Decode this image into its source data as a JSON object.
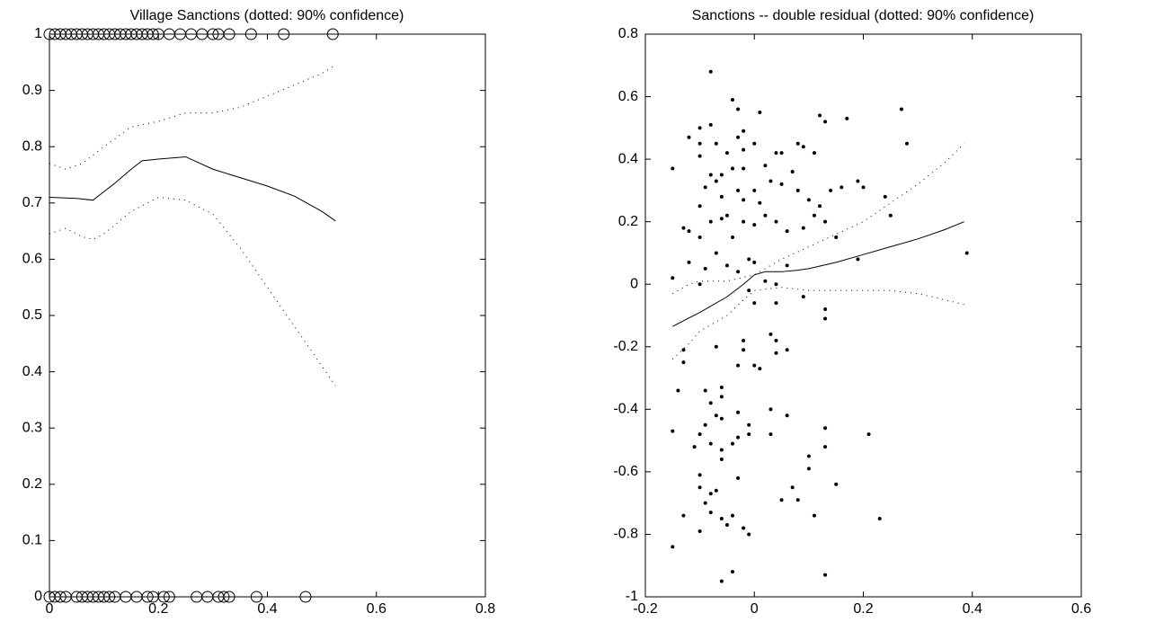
{
  "chart_data": [
    {
      "type": "line",
      "title": "Village Sanctions (dotted: 90% confidence)",
      "xlim": [
        0,
        0.8
      ],
      "xticks": [
        0,
        0.2,
        0.4,
        0.6,
        0.8
      ],
      "ylim": [
        0,
        1
      ],
      "yticks": [
        0,
        0.1,
        0.2,
        0.3,
        0.4,
        0.5,
        0.6,
        0.7,
        0.8,
        0.9,
        1
      ],
      "grid": false,
      "series": [
        {
          "style": "solid",
          "color": "#000000",
          "x": [
            0,
            0.05,
            0.08,
            0.1,
            0.12,
            0.15,
            0.17,
            0.2,
            0.25,
            0.3,
            0.35,
            0.4,
            0.45,
            0.5,
            0.525
          ],
          "values": [
            0.71,
            0.708,
            0.705,
            0.72,
            0.735,
            0.76,
            0.775,
            0.778,
            0.782,
            0.76,
            0.745,
            0.73,
            0.712,
            0.685,
            0.668
          ]
        },
        {
          "style": "dotted",
          "color": "#000000",
          "x": [
            0,
            0.03,
            0.06,
            0.1,
            0.15,
            0.2,
            0.25,
            0.3,
            0.35,
            0.4,
            0.45,
            0.5,
            0.525
          ],
          "values": [
            0.77,
            0.76,
            0.77,
            0.8,
            0.835,
            0.845,
            0.86,
            0.86,
            0.87,
            0.89,
            0.91,
            0.93,
            0.945
          ]
        },
        {
          "style": "dotted",
          "color": "#000000",
          "x": [
            0,
            0.03,
            0.06,
            0.08,
            0.1,
            0.15,
            0.2,
            0.25,
            0.3,
            0.35,
            0.4,
            0.45,
            0.5,
            0.525
          ],
          "values": [
            0.645,
            0.655,
            0.64,
            0.635,
            0.645,
            0.685,
            0.71,
            0.705,
            0.68,
            0.62,
            0.55,
            0.48,
            0.41,
            0.375
          ]
        },
        {
          "style": "circle",
          "color": "#000000",
          "x": [
            0,
            0.01,
            0.02,
            0.03,
            0.04,
            0.05,
            0.06,
            0.07,
            0.08,
            0.09,
            0.1,
            0.11,
            0.12,
            0.13,
            0.14,
            0.15,
            0.16,
            0.17,
            0.18,
            0.19,
            0.2,
            0.22,
            0.24,
            0.26,
            0.28,
            0.3,
            0.31,
            0.33,
            0.37,
            0.43,
            0.52
          ],
          "values": [
            1,
            1,
            1,
            1,
            1,
            1,
            1,
            1,
            1,
            1,
            1,
            1,
            1,
            1,
            1,
            1,
            1,
            1,
            1,
            1,
            1,
            1,
            1,
            1,
            1,
            1,
            1,
            1,
            1,
            1,
            1
          ]
        },
        {
          "style": "circle",
          "color": "#000000",
          "x": [
            0,
            0.01,
            0.02,
            0.03,
            0.05,
            0.06,
            0.07,
            0.08,
            0.09,
            0.1,
            0.11,
            0.12,
            0.14,
            0.16,
            0.18,
            0.19,
            0.21,
            0.22,
            0.27,
            0.29,
            0.31,
            0.32,
            0.33,
            0.38,
            0.47
          ],
          "values": [
            0,
            0,
            0,
            0,
            0,
            0,
            0,
            0,
            0,
            0,
            0,
            0,
            0,
            0,
            0,
            0,
            0,
            0,
            0,
            0,
            0,
            0,
            0,
            0,
            0
          ]
        }
      ]
    },
    {
      "type": "line",
      "title": "Sanctions -- double residual (dotted: 90% confidence)",
      "xlim": [
        -0.2,
        0.6
      ],
      "xticks": [
        -0.2,
        0,
        0.2,
        0.4,
        0.6
      ],
      "ylim": [
        -1,
        0.8
      ],
      "yticks": [
        -1,
        -0.8,
        -0.6,
        -0.4,
        -0.2,
        0,
        0.2,
        0.4,
        0.6,
        0.8
      ],
      "grid": false,
      "series": [
        {
          "style": "solid",
          "color": "#000000",
          "x": [
            -0.15,
            -0.1,
            -0.05,
            -0.02,
            0,
            0.02,
            0.05,
            0.08,
            0.1,
            0.15,
            0.2,
            0.25,
            0.3,
            0.35,
            0.385
          ],
          "values": [
            -0.135,
            -0.09,
            -0.04,
            0.0,
            0.03,
            0.04,
            0.04,
            0.045,
            0.05,
            0.07,
            0.095,
            0.12,
            0.145,
            0.175,
            0.2
          ]
        },
        {
          "style": "dotted",
          "color": "#000000",
          "x": [
            -0.15,
            -0.12,
            -0.1,
            -0.05,
            0,
            0.05,
            0.1,
            0.15,
            0.2,
            0.25,
            0.3,
            0.35,
            0.385
          ],
          "values": [
            -0.03,
            0.0,
            0.01,
            0.01,
            0.03,
            0.08,
            0.12,
            0.16,
            0.2,
            0.26,
            0.32,
            0.39,
            0.45
          ]
        },
        {
          "style": "dotted",
          "color": "#000000",
          "x": [
            -0.15,
            -0.12,
            -0.1,
            -0.05,
            -0.02,
            0,
            0.05,
            0.1,
            0.15,
            0.2,
            0.25,
            0.3,
            0.35,
            0.385
          ],
          "values": [
            -0.24,
            -0.19,
            -0.15,
            -0.1,
            -0.05,
            -0.02,
            -0.01,
            -0.02,
            -0.02,
            -0.02,
            -0.02,
            -0.03,
            -0.05,
            -0.065
          ]
        },
        {
          "style": "dot",
          "color": "#000000",
          "x": [
            -0.08,
            -0.04,
            -0.03,
            0.01,
            -0.1,
            -0.08,
            -0.12,
            -0.1,
            -0.07,
            -0.05,
            -0.02,
            -0.03,
            -0.02,
            0,
            -0.15,
            -0.1,
            -0.08,
            -0.06,
            -0.04,
            -0.02,
            0.02,
            0.04,
            0.05,
            0.08,
            0.09,
            0.11,
            0.12,
            0.13,
            0.17,
            0.27,
            0.28,
            -0.13,
            -0.12,
            -0.1,
            -0.09,
            -0.07,
            -0.06,
            -0.05,
            -0.03,
            -0.02,
            0,
            0.01,
            0.03,
            0.05,
            0.07,
            0.08,
            0.1,
            0.12,
            0.14,
            0.16,
            0.19,
            0.2,
            0.24,
            0.25,
            -0.1,
            -0.08,
            -0.06,
            -0.04,
            -0.02,
            0,
            0.02,
            0.04,
            0.06,
            0.09,
            0.11,
            0.13,
            0.15,
            -0.12,
            -0.1,
            -0.09,
            -0.07,
            -0.05,
            -0.03,
            -0.01,
            0,
            0.02,
            0.04,
            0.06,
            0.09,
            0.13,
            0.13,
            0.19,
            0.39,
            -0.15,
            -0.01,
            0,
            0.04,
            -0.14,
            -0.13,
            -0.13,
            -0.07,
            -0.02,
            -0.02,
            -0.03,
            0,
            0.01,
            0.03,
            0.04,
            0.06,
            0.04,
            -0.09,
            -0.06,
            -0.06,
            -0.08,
            -0.07,
            -0.09,
            -0.06,
            -0.03,
            0.03,
            0.06,
            -0.01,
            -0.01,
            -0.15,
            -0.1,
            -0.08,
            -0.06,
            -0.06,
            -0.03,
            -0.04,
            0.03,
            0.13,
            0.13,
            0.1,
            0.1,
            0.15,
            0.21,
            -0.11,
            -0.1,
            -0.1,
            -0.08,
            -0.07,
            -0.03,
            -0.09,
            -0.08,
            -0.06,
            -0.04,
            0.05,
            0.07,
            0.08,
            -0.13,
            -0.1,
            -0.05,
            -0.02,
            -0.01,
            -0.15,
            0.11,
            0.23,
            -0.04,
            -0.06,
            0.13
          ],
          "values": [
            0.68,
            0.59,
            0.56,
            0.55,
            0.5,
            0.51,
            0.47,
            0.45,
            0.45,
            0.42,
            0.49,
            0.47,
            0.43,
            0.45,
            0.37,
            0.41,
            0.35,
            0.35,
            0.37,
            0.37,
            0.38,
            0.42,
            0.42,
            0.45,
            0.44,
            0.42,
            0.54,
            0.52,
            0.53,
            0.56,
            0.45,
            0.18,
            0.17,
            0.25,
            0.31,
            0.33,
            0.28,
            0.22,
            0.3,
            0.27,
            0.3,
            0.26,
            0.33,
            0.32,
            0.36,
            0.3,
            0.27,
            0.25,
            0.3,
            0.31,
            0.33,
            0.31,
            0.28,
            0.22,
            0.15,
            0.2,
            0.21,
            0.15,
            0.2,
            0.19,
            0.22,
            0.2,
            0.17,
            0.18,
            0.22,
            0.2,
            0.15,
            0.07,
            0.0,
            0.05,
            0.1,
            0.06,
            0.04,
            0.08,
            0.07,
            0.01,
            0.0,
            0.06,
            -0.04,
            -0.11,
            -0.08,
            0.08,
            0.1,
            0.02,
            -0.02,
            -0.06,
            -0.06,
            -0.34,
            -0.21,
            -0.25,
            -0.2,
            -0.18,
            -0.21,
            -0.26,
            -0.26,
            -0.27,
            -0.16,
            -0.18,
            -0.21,
            -0.22,
            -0.34,
            -0.33,
            -0.36,
            -0.38,
            -0.42,
            -0.45,
            -0.43,
            -0.41,
            -0.4,
            -0.42,
            -0.45,
            -0.48,
            -0.47,
            -0.48,
            -0.51,
            -0.53,
            -0.56,
            -0.49,
            -0.51,
            -0.48,
            -0.46,
            -0.52,
            -0.55,
            -0.59,
            -0.64,
            -0.48,
            -0.52,
            -0.61,
            -0.65,
            -0.67,
            -0.66,
            -0.62,
            -0.7,
            -0.73,
            -0.75,
            -0.74,
            -0.69,
            -0.65,
            -0.69,
            -0.74,
            -0.79,
            -0.77,
            -0.78,
            -0.8,
            -0.84,
            -0.74,
            -0.75,
            -0.92,
            -0.95,
            -0.93
          ]
        }
      ]
    }
  ]
}
